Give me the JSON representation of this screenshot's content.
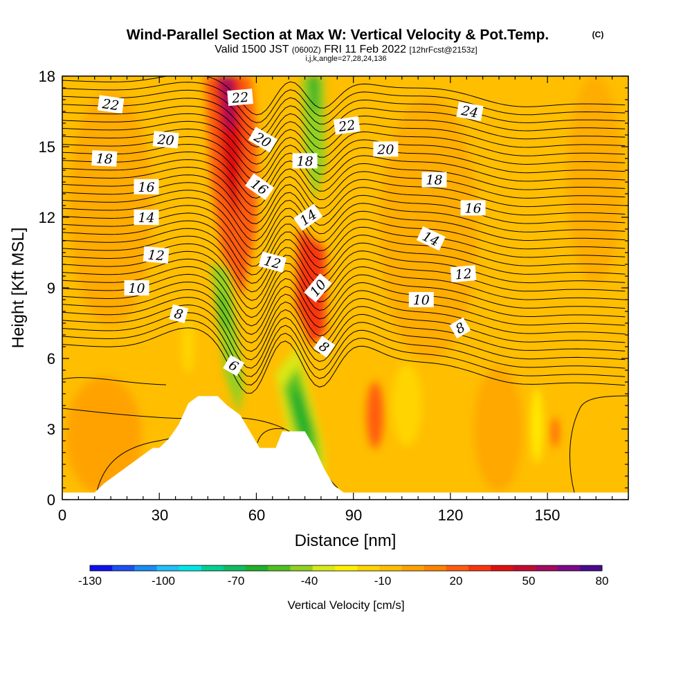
{
  "chart_data": {
    "type": "heatmap",
    "title": "Wind-Parallel Section at Max W: Vertical Velocity & Pot.Temp.",
    "title_mark": "(C)",
    "subtitle_valid": "Valid 1500 JST",
    "subtitle_utc": "(0600Z)",
    "subtitle_date": "FRI 11 Feb 2022",
    "subtitle_fcst": "[12hrFcst@2153z]",
    "subtitle_indices": "i,j,k,angle=27,28,24,136",
    "xlabel": "Distance [nm]",
    "ylabel": "Height [Kft MSL]",
    "xlim": [
      0,
      175
    ],
    "ylim": [
      0,
      18
    ],
    "x_ticks": [
      "0",
      "30",
      "60",
      "90",
      "120",
      "150"
    ],
    "y_ticks": [
      "0",
      "3",
      "6",
      "9",
      "12",
      "15",
      "18"
    ],
    "colorbar": {
      "label": "Vertical Velocity [cm/s]",
      "tick_labels": [
        "-130",
        "-100",
        "-70",
        "-40",
        "-10",
        "20",
        "50",
        "80"
      ],
      "colors": [
        "#1010ee",
        "#1e50f0",
        "#1a8cf2",
        "#20c0f8",
        "#00e6e6",
        "#00d090",
        "#10bc60",
        "#20b02a",
        "#50c020",
        "#90d020",
        "#d8e818",
        "#ffee00",
        "#ffd400",
        "#ffbe00",
        "#ffa200",
        "#ff8400",
        "#ff5c10",
        "#f83410",
        "#e01010",
        "#c00c30",
        "#a00a60",
        "#7a0a88",
        "#4a0a90"
      ]
    },
    "theta_contour_labels": [
      {
        "text": "22",
        "x": 15,
        "y": 16.8,
        "angle": 8
      },
      {
        "text": "22",
        "x": 55,
        "y": 17.1,
        "angle": -5
      },
      {
        "text": "22",
        "x": 88,
        "y": 15.9,
        "angle": -8
      },
      {
        "text": "24",
        "x": 126,
        "y": 16.5,
        "angle": 10
      },
      {
        "text": "20",
        "x": 32,
        "y": 15.3,
        "angle": 5
      },
      {
        "text": "20",
        "x": 62,
        "y": 15.3,
        "angle": 30
      },
      {
        "text": "20",
        "x": 100,
        "y": 14.9,
        "angle": 0
      },
      {
        "text": "18",
        "x": 13,
        "y": 14.5,
        "angle": 3
      },
      {
        "text": "18",
        "x": 75,
        "y": 14.4,
        "angle": 0
      },
      {
        "text": "18",
        "x": 115,
        "y": 13.6,
        "angle": 0
      },
      {
        "text": "16",
        "x": 26,
        "y": 13.3,
        "angle": 0
      },
      {
        "text": "16",
        "x": 61,
        "y": 13.3,
        "angle": 35
      },
      {
        "text": "16",
        "x": 127,
        "y": 12.4,
        "angle": 0
      },
      {
        "text": "14",
        "x": 26,
        "y": 12.0,
        "angle": 0
      },
      {
        "text": "14",
        "x": 76,
        "y": 12.0,
        "angle": -35
      },
      {
        "text": "14",
        "x": 114,
        "y": 11.1,
        "angle": 25
      },
      {
        "text": "12",
        "x": 29,
        "y": 10.4,
        "angle": 5
      },
      {
        "text": "12",
        "x": 65,
        "y": 10.1,
        "angle": 15
      },
      {
        "text": "12",
        "x": 124,
        "y": 9.6,
        "angle": -5
      },
      {
        "text": "10",
        "x": 23,
        "y": 9.0,
        "angle": 0
      },
      {
        "text": "10",
        "x": 79,
        "y": 9.0,
        "angle": -50
      },
      {
        "text": "10",
        "x": 111,
        "y": 8.5,
        "angle": 0
      },
      {
        "text": "8",
        "x": 36,
        "y": 7.9,
        "angle": 15
      },
      {
        "text": "8",
        "x": 81,
        "y": 6.5,
        "angle": 35
      },
      {
        "text": "8",
        "x": 123,
        "y": 7.3,
        "angle": -30
      },
      {
        "text": "6",
        "x": 53,
        "y": 5.7,
        "angle": 30
      }
    ],
    "terrain_profile": [
      [
        0,
        0.3
      ],
      [
        10,
        0.3
      ],
      [
        13,
        0.7
      ],
      [
        16,
        1.0
      ],
      [
        22,
        1.6
      ],
      [
        25,
        1.9
      ],
      [
        28,
        2.2
      ],
      [
        30,
        2.2
      ],
      [
        33,
        2.6
      ],
      [
        36,
        3.2
      ],
      [
        39,
        4.1
      ],
      [
        42,
        4.4
      ],
      [
        48,
        4.4
      ],
      [
        51,
        4.0
      ],
      [
        55,
        3.6
      ],
      [
        58,
        2.9
      ],
      [
        61,
        2.2
      ],
      [
        66,
        2.2
      ],
      [
        68,
        2.9
      ],
      [
        75,
        2.9
      ],
      [
        78,
        2.2
      ],
      [
        81,
        1.3
      ],
      [
        84,
        0.6
      ],
      [
        87,
        0.3
      ],
      [
        175,
        0.3
      ]
    ]
  }
}
